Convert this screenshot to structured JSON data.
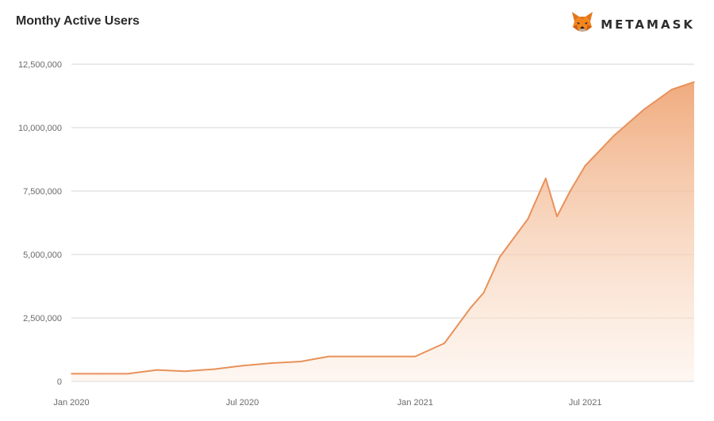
{
  "header": {
    "title": "Monthy Active Users",
    "brand_name": "METAMASK",
    "brand_icon": "metamask-fox-icon"
  },
  "colors": {
    "line": "#e8915a",
    "fill_top": "#efa777",
    "fill_bottom": "#fdf0e6",
    "grid": "#e3e3e3"
  },
  "chart_data": {
    "type": "area",
    "title": "Monthy Active Users",
    "xlabel": "",
    "ylabel": "",
    "grid": true,
    "legend": "none",
    "ylim": [
      0,
      12500000
    ],
    "yticks": [
      0,
      2500000,
      5000000,
      7500000,
      10000000,
      12500000
    ],
    "ytick_labels": [
      "0",
      "2,500,000",
      "5,000,000",
      "7,500,000",
      "10,000,000",
      "12,500,000"
    ],
    "xlim": [
      "2020-01-01",
      "2021-10-25"
    ],
    "xticks": [
      "2020-01-01",
      "2020-07-01",
      "2021-01-01",
      "2021-07-01"
    ],
    "xtick_labels": [
      "Jan 2020",
      "Jul 2020",
      "Jan 2021",
      "Jul 2021"
    ],
    "series": [
      {
        "x": [
          "2020-01-01",
          "2020-02-01",
          "2020-03-01",
          "2020-04-01",
          "2020-05-01",
          "2020-06-01",
          "2020-07-01",
          "2020-08-01",
          "2020-09-01",
          "2020-10-01",
          "2020-11-01",
          "2020-12-01",
          "2021-01-01",
          "2021-02-01",
          "2021-03-01",
          "2021-03-15",
          "2021-04-01",
          "2021-05-01",
          "2021-05-20",
          "2021-06-01",
          "2021-06-15",
          "2021-07-01",
          "2021-08-01",
          "2021-09-01",
          "2021-10-01",
          "2021-10-25"
        ],
        "y": [
          300000,
          300000,
          300000,
          450000,
          400000,
          480000,
          620000,
          720000,
          780000,
          980000,
          980000,
          980000,
          980000,
          1500000,
          2900000,
          3500000,
          4900000,
          6400000,
          8000000,
          6500000,
          7500000,
          8500000,
          9700000,
          10700000,
          11500000,
          11800000
        ]
      }
    ]
  }
}
